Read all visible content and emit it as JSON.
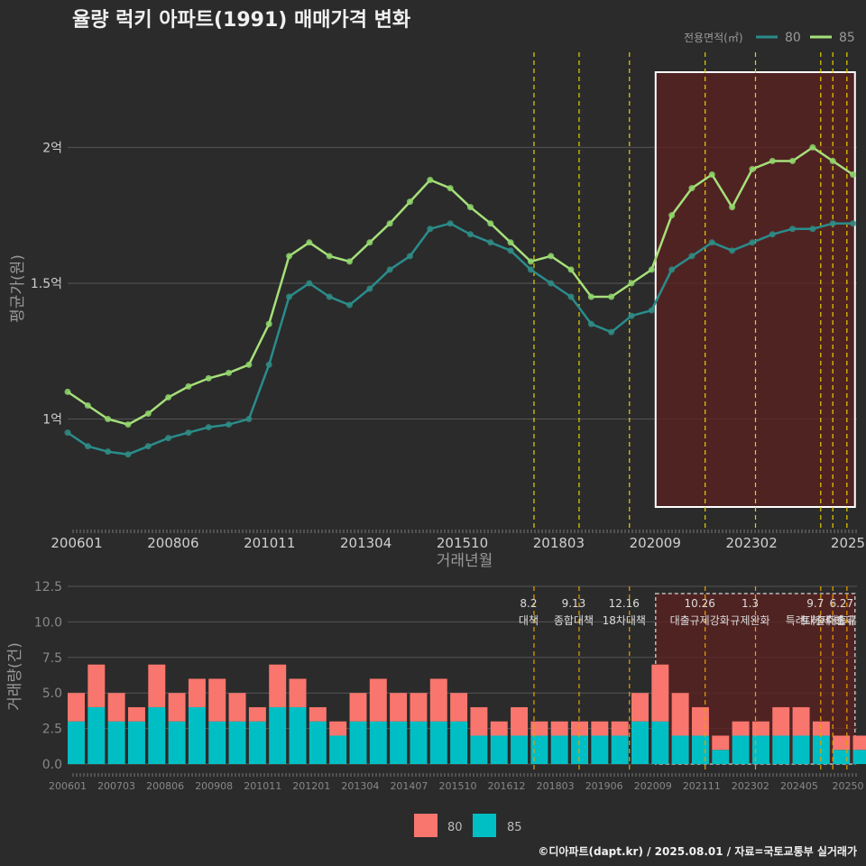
{
  "title": "율량 럭키 아파트(1991) 매매가격 변화",
  "credit": "©디아파트(dapt.kr) / 2025.08.01 / 자료=국토교통부 실거래가",
  "colors": {
    "bg": "#2b2b2b",
    "grid": "#555555",
    "line80": "#2a8c8c",
    "line85": "#a6e07a",
    "pt80": "#2f8c84",
    "pt85": "#8fd66b",
    "bar80": "#f8766d",
    "bar85": "#00bfc4",
    "vline": "#e8d000",
    "vline2": "#e8a000",
    "highlight": "#5a2222"
  },
  "chart_data": [
    {
      "type": "line",
      "title": "율량 럭키 아파트(1991) 매매가격 변화",
      "xlabel": "거래년월",
      "ylabel": "평균가(원)",
      "x_ticks": [
        "200601",
        "200806",
        "201011",
        "201304",
        "201510",
        "201803",
        "202009",
        "202302",
        "2025"
      ],
      "y_ticks": [
        {
          "value": 1.0,
          "label": "1억"
        },
        {
          "value": 1.5,
          "label": "1.5억"
        },
        {
          "value": 2.0,
          "label": "2억"
        }
      ],
      "ylim": [
        0.6,
        2.35
      ],
      "xlim": [
        2006.0,
        2025.6
      ],
      "legend": {
        "title": "전용면적(㎡)",
        "position": "top-right",
        "items": [
          "80",
          "85"
        ]
      },
      "highlight_range": [
        2020.6,
        2025.55
      ],
      "policy_lines": [
        2017.58,
        2018.7,
        2019.95,
        2021.83,
        2023.08,
        2024.7,
        2025.0,
        2025.35
      ],
      "series": [
        {
          "name": "80",
          "x": [
            2006.0,
            2006.5,
            2007.0,
            2007.5,
            2008.0,
            2008.5,
            2009.0,
            2009.5,
            2010.0,
            2010.5,
            2011.0,
            2011.5,
            2012.0,
            2012.5,
            2013.0,
            2013.5,
            2014.0,
            2014.5,
            2015.0,
            2015.5,
            2016.0,
            2016.5,
            2017.0,
            2017.5,
            2018.0,
            2018.5,
            2019.0,
            2019.5,
            2020.0,
            2020.5,
            2021.0,
            2021.5,
            2022.0,
            2022.5,
            2023.0,
            2023.5,
            2024.0,
            2024.5,
            2025.0,
            2025.5
          ],
          "values": [
            0.95,
            0.9,
            0.88,
            0.87,
            0.9,
            0.93,
            0.95,
            0.97,
            0.98,
            1.0,
            1.2,
            1.45,
            1.5,
            1.45,
            1.42,
            1.48,
            1.55,
            1.6,
            1.7,
            1.72,
            1.68,
            1.65,
            1.62,
            1.55,
            1.5,
            1.45,
            1.35,
            1.32,
            1.38,
            1.4,
            1.55,
            1.6,
            1.65,
            1.62,
            1.65,
            1.68,
            1.7,
            1.7,
            1.72,
            1.72
          ]
        },
        {
          "name": "85",
          "x": [
            2006.0,
            2006.5,
            2007.0,
            2007.5,
            2008.0,
            2008.5,
            2009.0,
            2009.5,
            2010.0,
            2010.5,
            2011.0,
            2011.5,
            2012.0,
            2012.5,
            2013.0,
            2013.5,
            2014.0,
            2014.5,
            2015.0,
            2015.5,
            2016.0,
            2016.5,
            2017.0,
            2017.5,
            2018.0,
            2018.5,
            2019.0,
            2019.5,
            2020.0,
            2020.5,
            2021.0,
            2021.5,
            2022.0,
            2022.5,
            2023.0,
            2023.5,
            2024.0,
            2024.5,
            2025.0,
            2025.5
          ],
          "values": [
            1.1,
            1.05,
            1.0,
            0.98,
            1.02,
            1.08,
            1.12,
            1.15,
            1.17,
            1.2,
            1.35,
            1.6,
            1.65,
            1.6,
            1.58,
            1.65,
            1.72,
            1.8,
            1.88,
            1.85,
            1.78,
            1.72,
            1.65,
            1.58,
            1.6,
            1.55,
            1.45,
            1.45,
            1.5,
            1.55,
            1.75,
            1.85,
            1.9,
            1.78,
            1.92,
            1.95,
            1.95,
            2.0,
            1.95,
            1.9
          ]
        }
      ]
    },
    {
      "type": "bar",
      "xlabel": "",
      "ylabel": "거래량(건)",
      "x_ticks": [
        "200601",
        "200703",
        "200806",
        "200908",
        "201011",
        "201201",
        "201304",
        "201407",
        "201510",
        "201612",
        "201803",
        "201906",
        "202009",
        "202111",
        "202302",
        "202405",
        "20250"
      ],
      "y_ticks": [
        {
          "value": 0,
          "label": "0.0"
        },
        {
          "value": 2.5,
          "label": "2.5"
        },
        {
          "value": 5.0,
          "label": "5.0"
        },
        {
          "value": 7.5,
          "label": "7.5"
        },
        {
          "value": 10.0,
          "label": "10.0"
        },
        {
          "value": 12.5,
          "label": "12.5"
        }
      ],
      "ylim": [
        0,
        12.5
      ],
      "legend": {
        "position": "bottom",
        "items": [
          "80",
          "85"
        ]
      },
      "annotations": [
        {
          "date": "8.2",
          "label": "대책",
          "x": 2017.58
        },
        {
          "date": "9.13",
          "label": "종합대책",
          "x": 2018.7
        },
        {
          "date": "12.16",
          "label": "18차대책",
          "x": 2019.95
        },
        {
          "date": "10.26",
          "label": "대출규제강화",
          "x": 2021.83
        },
        {
          "date": "1.3",
          "label": "규제완화",
          "x": 2023.08
        },
        {
          "date": "9.7",
          "label": "특례대출축소",
          "x": 2024.7
        },
        {
          "date": "",
          "label": "토허제 해제",
          "x": 2025.0
        },
        {
          "date": "6.27",
          "label": "대출규",
          "x": 2025.35
        }
      ],
      "series": [
        {
          "name": "80",
          "x": [
            2006.0,
            2006.5,
            2007.0,
            2007.5,
            2008.0,
            2008.5,
            2009.0,
            2009.5,
            2010.0,
            2010.5,
            2011.0,
            2011.5,
            2012.0,
            2012.5,
            2013.0,
            2013.5,
            2014.0,
            2014.5,
            2015.0,
            2015.5,
            2016.0,
            2016.5,
            2017.0,
            2017.5,
            2018.0,
            2018.5,
            2019.0,
            2019.5,
            2020.0,
            2020.5,
            2021.0,
            2021.5,
            2022.0,
            2022.5,
            2023.0,
            2023.5,
            2024.0,
            2024.5,
            2025.0,
            2025.5
          ],
          "values": [
            2,
            3,
            2,
            1,
            3,
            2,
            2,
            3,
            2,
            1,
            3,
            2,
            1,
            1,
            2,
            3,
            2,
            2,
            3,
            2,
            2,
            1,
            2,
            1,
            1,
            1,
            1,
            1,
            2,
            4,
            3,
            2,
            1,
            1,
            1,
            2,
            2,
            1,
            1,
            1
          ]
        },
        {
          "name": "85",
          "x": [
            2006.0,
            2006.5,
            2007.0,
            2007.5,
            2008.0,
            2008.5,
            2009.0,
            2009.5,
            2010.0,
            2010.5,
            2011.0,
            2011.5,
            2012.0,
            2012.5,
            2013.0,
            2013.5,
            2014.0,
            2014.5,
            2015.0,
            2015.5,
            2016.0,
            2016.5,
            2017.0,
            2017.5,
            2018.0,
            2018.5,
            2019.0,
            2019.5,
            2020.0,
            2020.5,
            2021.0,
            2021.5,
            2022.0,
            2022.5,
            2023.0,
            2023.5,
            2024.0,
            2024.5,
            2025.0,
            2025.5
          ],
          "values": [
            3,
            4,
            3,
            3,
            4,
            3,
            4,
            3,
            3,
            3,
            4,
            4,
            3,
            2,
            3,
            3,
            3,
            3,
            3,
            3,
            2,
            2,
            2,
            2,
            2,
            2,
            2,
            2,
            3,
            3,
            2,
            2,
            1,
            2,
            2,
            2,
            2,
            2,
            1,
            1
          ]
        }
      ]
    }
  ]
}
